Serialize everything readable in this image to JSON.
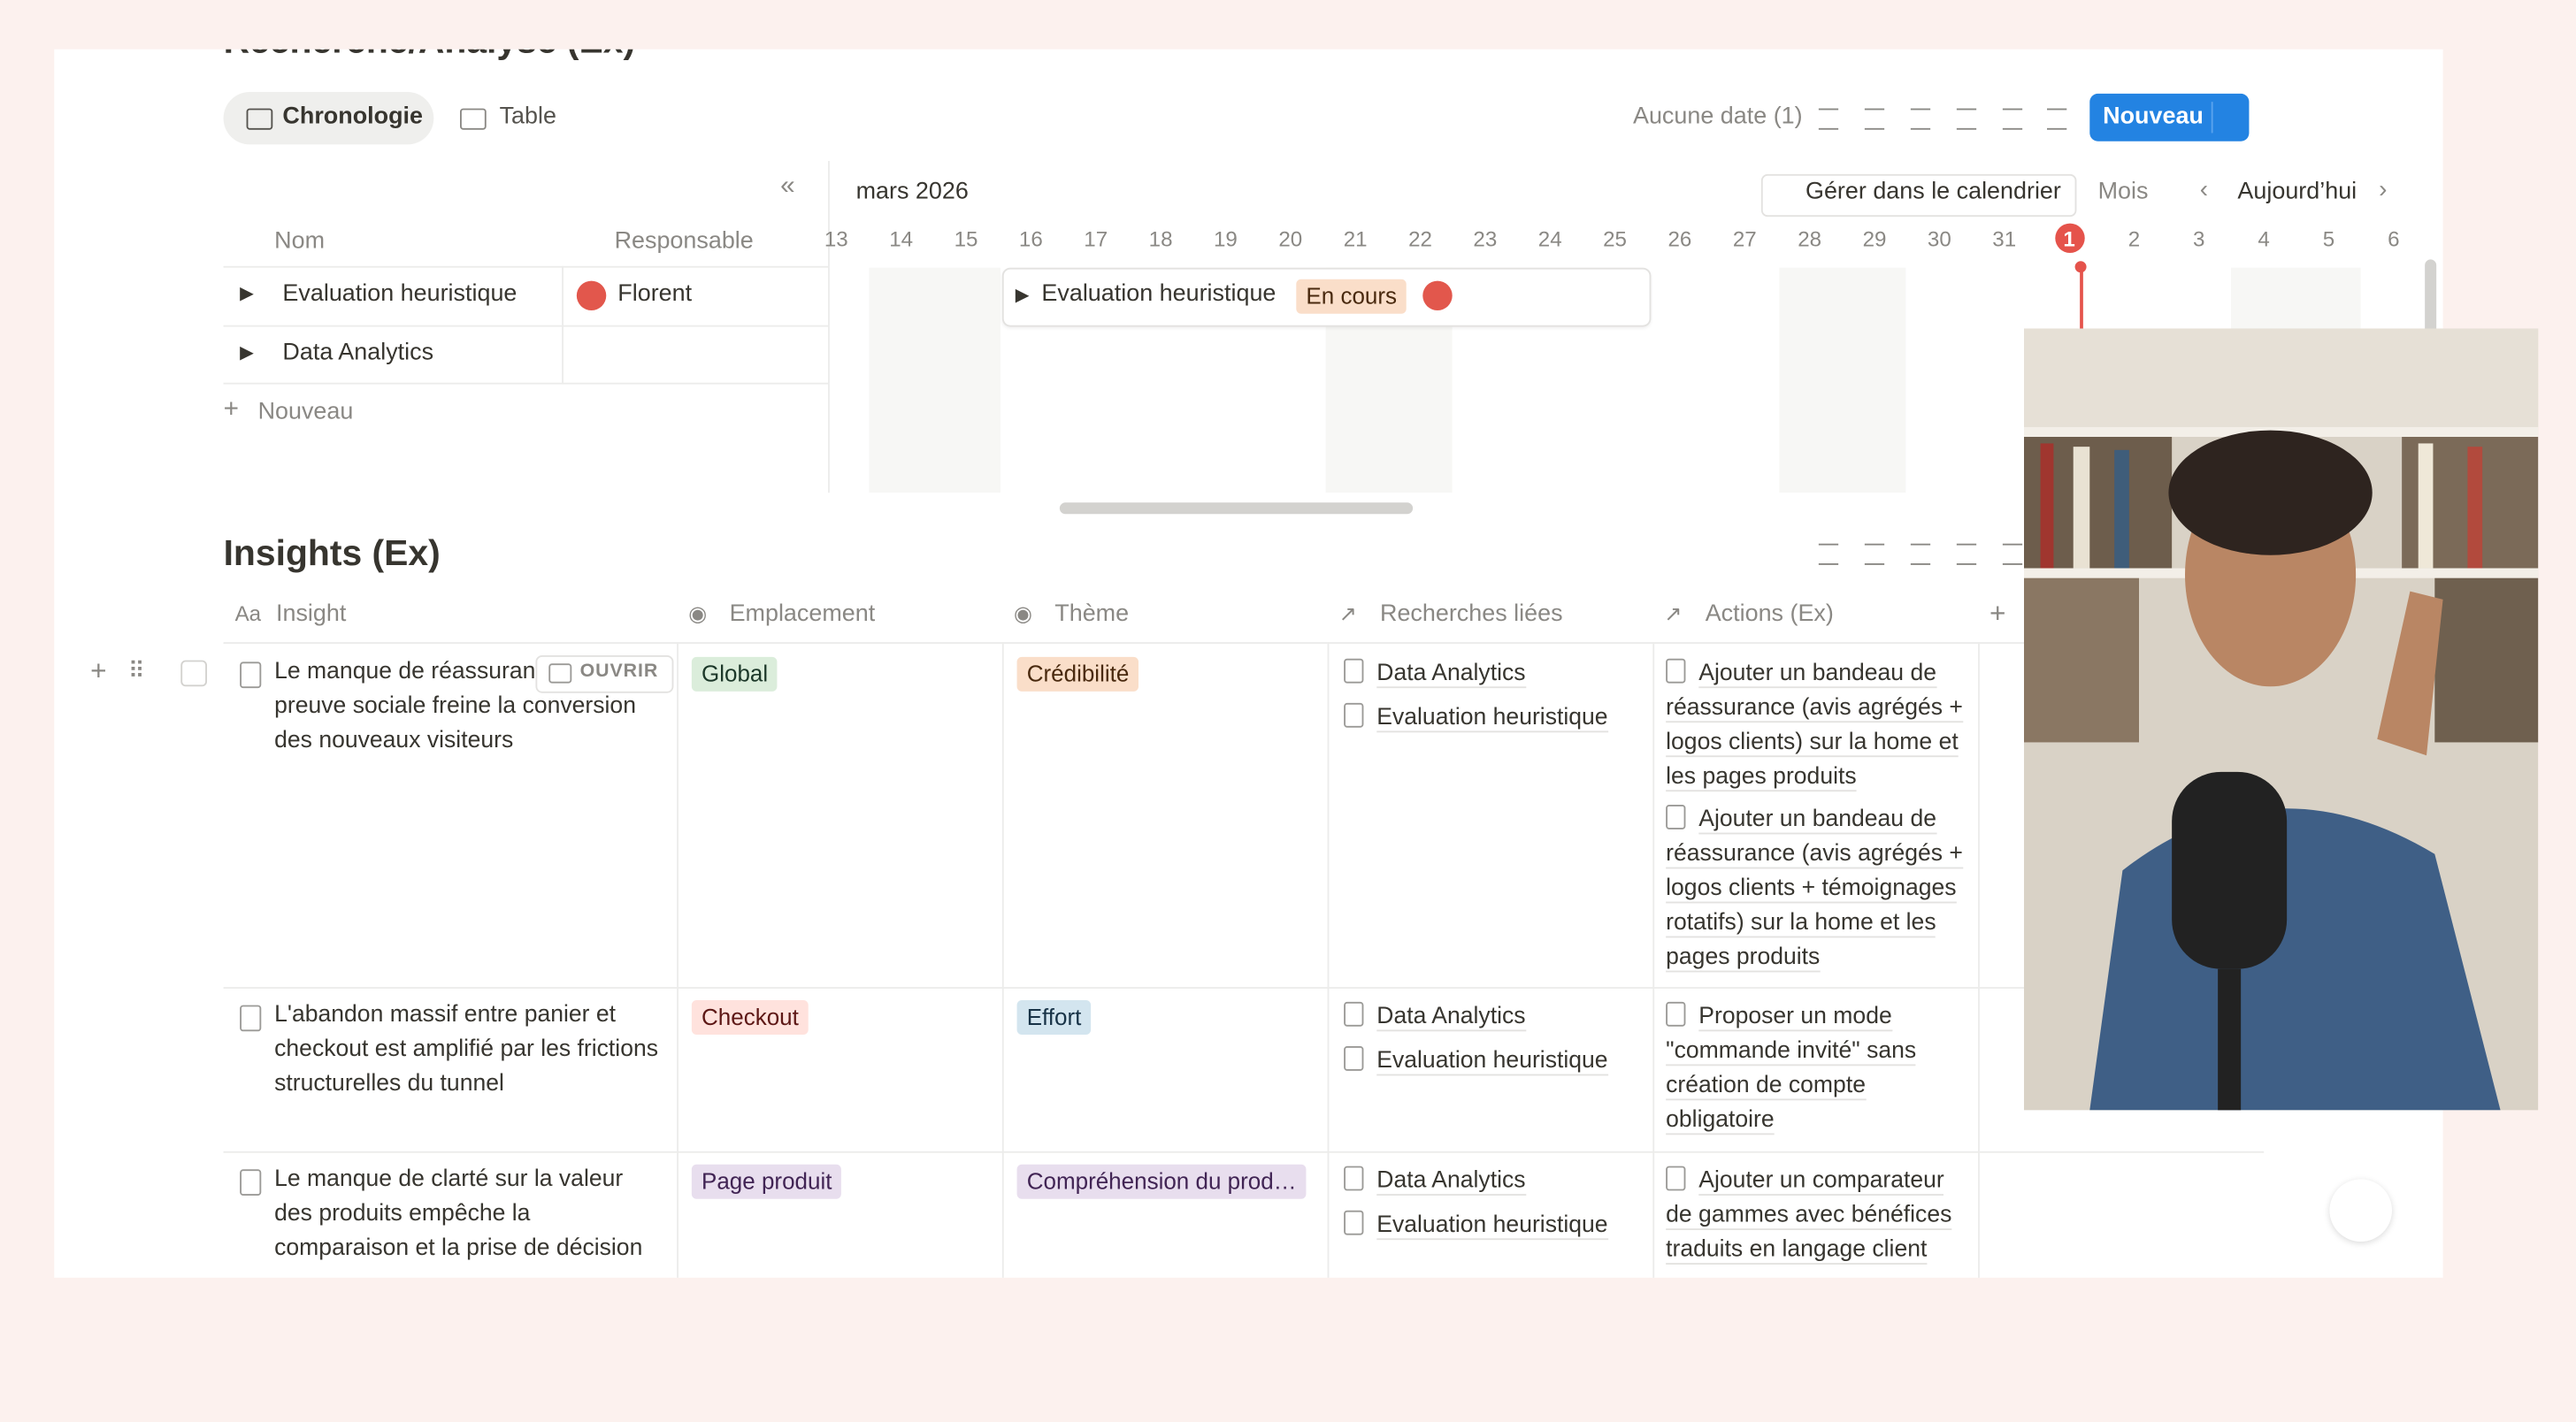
{
  "header": {
    "title": "Recherche/Analyse (Ex)"
  },
  "views": [
    "Chronologie",
    "Table"
  ],
  "toolbar": {
    "no_date": "Aucune date (1)",
    "new": "Nouveau"
  },
  "timeline": {
    "month": "mars 2026",
    "manage": "Gérer dans le calendrier",
    "scale": "Mois",
    "today": "Aujourd’hui",
    "days": [
      13,
      14,
      15,
      16,
      17,
      18,
      19,
      20,
      21,
      22,
      23,
      24,
      25,
      26,
      27,
      28,
      29,
      30,
      31,
      1,
      2,
      3,
      4,
      5,
      6
    ],
    "columns": {
      "name": "Nom",
      "owner": "Responsable"
    },
    "rows": [
      {
        "name": "Evaluation heuristique",
        "owner": "Florent"
      },
      {
        "name": "Data Analytics"
      }
    ],
    "new_row": "Nouveau",
    "bar": {
      "name": "Evaluation heuristique",
      "status": "En cours"
    }
  },
  "insights": {
    "title": "Insights (Ex)",
    "columns": [
      "Insight",
      "Emplacement",
      "Thème",
      "Recherches liées",
      "Actions (Ex)"
    ],
    "open": "OUVRIR",
    "rows": [
      {
        "insight": "Le manque de réassurance et de preuve sociale freine la conversion des nouveaux visiteurs",
        "location": "Global",
        "theme": "Crédibilité",
        "research": [
          "Data Analytics",
          "Evaluation heuristique"
        ],
        "actions": [
          "Ajouter un bandeau de réassurance (avis agrégés + logos clients) sur la home et les pages produits",
          "Ajouter un bandeau de réassurance (avis agrégés + logos clients + témoignages rotatifs) sur la home et les pages produits"
        ]
      },
      {
        "insight": "L'abandon massif entre panier et checkout est amplifié par les frictions structurelles du tunnel",
        "location": "Checkout",
        "theme": "Effort",
        "research": [
          "Data Analytics",
          "Evaluation heuristique"
        ],
        "actions": [
          "Proposer un mode \"commande invité\" sans création de compte obligatoire"
        ]
      },
      {
        "insight": "Le manque de clarté sur la valeur des produits empêche la comparaison et la prise de décision",
        "location": "Page produit",
        "theme": "Compréhension du prod…",
        "research": [
          "Data Analytics",
          "Evaluation heuristique"
        ],
        "actions": [
          "Ajouter un comparateur de gammes avec bénéfices traduits en langage client"
        ]
      }
    ]
  }
}
